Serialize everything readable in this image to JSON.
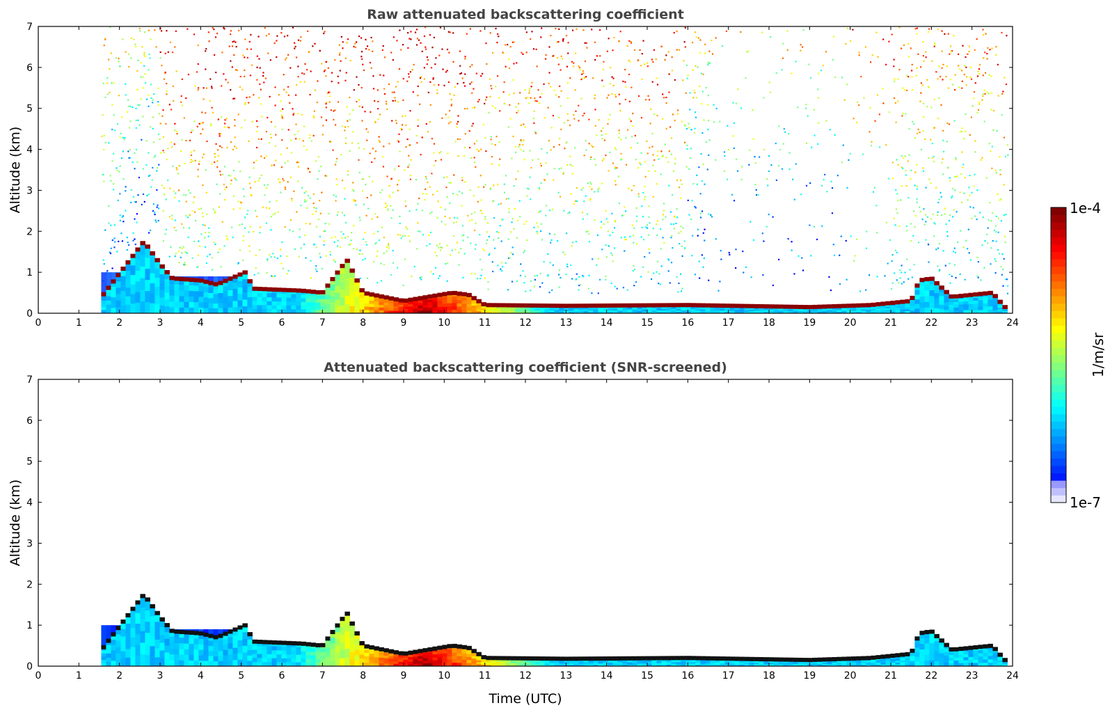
{
  "chart_data": [
    {
      "type": "heatmap",
      "title": "Raw attenuated backscattering coefficient",
      "xlabel": "",
      "ylabel": "Altitude (km)",
      "xlim": [
        0,
        24
      ],
      "ylim": [
        0,
        7
      ],
      "xticks": [
        "0",
        "1",
        "2",
        "3",
        "4",
        "5",
        "6",
        "7",
        "8",
        "9",
        "10",
        "11",
        "12",
        "13",
        "14",
        "15",
        "16",
        "17",
        "18",
        "19",
        "20",
        "21",
        "22",
        "23",
        "24"
      ],
      "yticks": [
        "0",
        "1",
        "2",
        "3",
        "4",
        "5",
        "6",
        "7"
      ],
      "data_start_time": 1.55,
      "data_end_time": 23.8,
      "boundary_layer_top_km": [
        [
          1.6,
          0.45
        ],
        [
          2.6,
          1.75
        ],
        [
          3.0,
          1.2
        ],
        [
          3.3,
          0.85
        ],
        [
          4.0,
          0.8
        ],
        [
          4.4,
          0.7
        ],
        [
          5.1,
          1.0
        ],
        [
          5.3,
          0.6
        ],
        [
          6.5,
          0.55
        ],
        [
          7.0,
          0.5
        ],
        [
          7.6,
          1.3
        ],
        [
          8.0,
          0.5
        ],
        [
          9.0,
          0.3
        ],
        [
          10.2,
          0.5
        ],
        [
          10.6,
          0.45
        ],
        [
          11.0,
          0.2
        ],
        [
          13.0,
          0.18
        ],
        [
          16.0,
          0.2
        ],
        [
          19.0,
          0.15
        ],
        [
          20.5,
          0.2
        ],
        [
          21.5,
          0.3
        ],
        [
          21.7,
          0.8
        ],
        [
          22.0,
          0.85
        ],
        [
          22.5,
          0.4
        ],
        [
          23.0,
          0.45
        ],
        [
          23.5,
          0.5
        ],
        [
          23.8,
          0.15
        ]
      ]
    },
    {
      "type": "heatmap",
      "title": "Attenuated backscattering coefficient (SNR-screened)",
      "xlabel": "Time (UTC)",
      "ylabel": "Altitude (km)",
      "xlim": [
        0,
        24
      ],
      "ylim": [
        0,
        7
      ],
      "xticks": [
        "0",
        "1",
        "2",
        "3",
        "4",
        "5",
        "6",
        "7",
        "8",
        "9",
        "10",
        "11",
        "12",
        "13",
        "14",
        "15",
        "16",
        "17",
        "18",
        "19",
        "20",
        "21",
        "22",
        "23",
        "24"
      ],
      "yticks": [
        "0",
        "1",
        "2",
        "3",
        "4",
        "5",
        "6",
        "7"
      ],
      "data_start_time": 1.55,
      "data_end_time": 23.8
    }
  ],
  "colorbar": {
    "label": "1/m/sr",
    "max_label": "1e-4",
    "min_label": "1e-7",
    "colormap": "jet"
  },
  "colors": {
    "axis": "#000000",
    "title": "#444444",
    "jet_low": "#00007f",
    "jet_high": "#7f0000"
  }
}
